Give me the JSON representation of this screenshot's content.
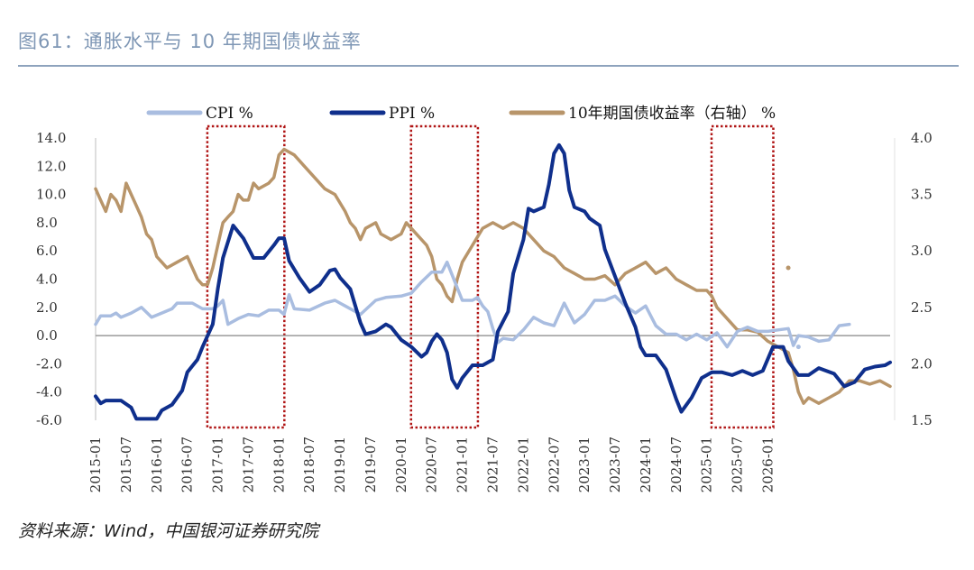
{
  "title": "图61：通胀水平与 10 年期国债收益率",
  "source": "资料来源：Wind，中国银河证券研究院",
  "colors": {
    "cpi": "#a9bde0",
    "ppi": "#0f2f8c",
    "bond": "#b8956a",
    "box": "#b01515",
    "title": "#7f97b5"
  },
  "chart_data": {
    "type": "line",
    "title": "图61：通胀水平与 10 年期国债收益率",
    "legend": [
      "CPI %",
      "PPI %",
      "10年期国债收益率（右轴） %"
    ],
    "legend_position": "top",
    "x_ticks": [
      "2015-01",
      "2015-07",
      "2016-01",
      "2016-07",
      "2017-01",
      "2017-07",
      "2018-01",
      "2018-07",
      "2019-01",
      "2019-07",
      "2020-01",
      "2020-07",
      "2021-01",
      "2021-07",
      "2022-01",
      "2022-07",
      "2023-01",
      "2023-07",
      "2024-01",
      "2024-07",
      "2025-01",
      "2025-07",
      "2026-01"
    ],
    "ylim_left": [
      -6,
      14
    ],
    "ylim_right": [
      1.5,
      4.0
    ],
    "y_ticks_left": [
      "-6.0",
      "-4.0",
      "-2.0",
      "0.0",
      "2.0",
      "4.0",
      "6.0",
      "8.0",
      "10.0",
      "12.0",
      "14.0"
    ],
    "y_ticks_right": [
      "1.5",
      "2.0",
      "2.5",
      "3.0",
      "3.5",
      "4.0"
    ],
    "highlight_ranges": [
      [
        "2016-12",
        "2018-01"
      ],
      [
        "2020-04",
        "2021-03"
      ],
      [
        "2025-03",
        "2026-01"
      ]
    ],
    "series": [
      {
        "name": "CPI %",
        "axis": "left",
        "points": [
          [
            0,
            0.8
          ],
          [
            1,
            1.4
          ],
          [
            3,
            1.4
          ],
          [
            4,
            1.6
          ],
          [
            5,
            1.3
          ],
          [
            7,
            1.6
          ],
          [
            9,
            2.0
          ],
          [
            11,
            1.3
          ],
          [
            13,
            1.6
          ],
          [
            15,
            1.9
          ],
          [
            16,
            2.3
          ],
          [
            19,
            2.3
          ],
          [
            21,
            1.9
          ],
          [
            23,
            1.9
          ],
          [
            24,
            2.1
          ],
          [
            25,
            2.5
          ],
          [
            26,
            0.8
          ],
          [
            28,
            1.2
          ],
          [
            30,
            1.5
          ],
          [
            32,
            1.4
          ],
          [
            34,
            1.8
          ],
          [
            36,
            1.8
          ],
          [
            37,
            1.5
          ],
          [
            38,
            2.9
          ],
          [
            39,
            1.9
          ],
          [
            42,
            1.8
          ],
          [
            45,
            2.3
          ],
          [
            47,
            2.5
          ],
          [
            49,
            2.1
          ],
          [
            52,
            1.5
          ],
          [
            55,
            2.5
          ],
          [
            57,
            2.7
          ],
          [
            60,
            2.8
          ],
          [
            62,
            3.0
          ],
          [
            64,
            3.8
          ],
          [
            66,
            4.5
          ],
          [
            68,
            4.5
          ],
          [
            69,
            5.2
          ],
          [
            70,
            4.3
          ],
          [
            72,
            2.5
          ],
          [
            74,
            2.5
          ],
          [
            75,
            2.7
          ],
          [
            76,
            2.1
          ],
          [
            77,
            1.7
          ],
          [
            78,
            0.5
          ],
          [
            79,
            -0.5
          ],
          [
            80,
            -0.2
          ],
          [
            82,
            -0.3
          ],
          [
            84,
            0.4
          ],
          [
            86,
            1.3
          ],
          [
            88,
            0.9
          ],
          [
            90,
            0.7
          ],
          [
            92,
            2.3
          ],
          [
            94,
            0.9
          ],
          [
            96,
            1.5
          ],
          [
            98,
            2.5
          ],
          [
            100,
            2.5
          ],
          [
            102,
            2.8
          ],
          [
            104,
            2.1
          ],
          [
            106,
            1.6
          ],
          [
            108,
            2.1
          ],
          [
            110,
            0.7
          ],
          [
            112,
            0.1
          ],
          [
            114,
            0.1
          ],
          [
            116,
            -0.3
          ],
          [
            118,
            0.1
          ],
          [
            120,
            -0.3
          ],
          [
            122,
            0.2
          ],
          [
            124,
            -0.8
          ],
          [
            126,
            0.3
          ],
          [
            128,
            0.6
          ],
          [
            130,
            0.3
          ],
          [
            132,
            0.3
          ],
          [
            134,
            0.4
          ],
          [
            136,
            0.5
          ],
          [
            137,
            -0.7
          ],
          [
            138,
            0.0
          ],
          [
            140,
            -0.1
          ],
          [
            142,
            -0.4
          ],
          [
            144,
            -0.3
          ],
          [
            146,
            0.7
          ],
          [
            148,
            0.8
          ]
        ]
      },
      {
        "name": "PPI %",
        "axis": "left",
        "points": [
          [
            0,
            -4.3
          ],
          [
            1,
            -4.8
          ],
          [
            2,
            -4.6
          ],
          [
            5,
            -4.6
          ],
          [
            7,
            -5.1
          ],
          [
            8,
            -5.9
          ],
          [
            10,
            -5.9
          ],
          [
            12,
            -5.9
          ],
          [
            13,
            -5.3
          ],
          [
            15,
            -4.9
          ],
          [
            17,
            -3.9
          ],
          [
            18,
            -2.6
          ],
          [
            20,
            -1.7
          ],
          [
            21,
            -0.8
          ],
          [
            23,
            0.8
          ],
          [
            24,
            3.3
          ],
          [
            25,
            5.5
          ],
          [
            27,
            7.8
          ],
          [
            29,
            6.9
          ],
          [
            31,
            5.5
          ],
          [
            33,
            5.5
          ],
          [
            35,
            6.4
          ],
          [
            36,
            6.9
          ],
          [
            37,
            6.9
          ],
          [
            38,
            5.3
          ],
          [
            40,
            4.1
          ],
          [
            42,
            3.1
          ],
          [
            44,
            3.6
          ],
          [
            46,
            4.6
          ],
          [
            47,
            4.7
          ],
          [
            48,
            4.1
          ],
          [
            50,
            3.3
          ],
          [
            52,
            0.9
          ],
          [
            53,
            0.1
          ],
          [
            55,
            0.3
          ],
          [
            57,
            0.8
          ],
          [
            58,
            0.6
          ],
          [
            60,
            -0.3
          ],
          [
            62,
            -0.8
          ],
          [
            64,
            -1.5
          ],
          [
            65,
            -1.2
          ],
          [
            66,
            -0.4
          ],
          [
            67,
            0.1
          ],
          [
            68,
            -0.3
          ],
          [
            69,
            -1.2
          ],
          [
            70,
            -3.1
          ],
          [
            71,
            -3.7
          ],
          [
            72,
            -3.0
          ],
          [
            74,
            -2.1
          ],
          [
            76,
            -2.1
          ],
          [
            78,
            -1.7
          ],
          [
            79,
            0.3
          ],
          [
            81,
            1.7
          ],
          [
            82,
            4.4
          ],
          [
            84,
            6.8
          ],
          [
            85,
            9.0
          ],
          [
            86,
            8.8
          ],
          [
            88,
            9.1
          ],
          [
            89,
            10.7
          ],
          [
            90,
            12.9
          ],
          [
            91,
            13.5
          ],
          [
            92,
            12.9
          ],
          [
            93,
            10.3
          ],
          [
            94,
            9.1
          ],
          [
            96,
            8.8
          ],
          [
            97,
            8.3
          ],
          [
            99,
            7.8
          ],
          [
            100,
            6.1
          ],
          [
            102,
            4.2
          ],
          [
            104,
            2.3
          ],
          [
            106,
            0.6
          ],
          [
            107,
            -0.8
          ],
          [
            108,
            -1.4
          ],
          [
            110,
            -1.4
          ],
          [
            112,
            -2.4
          ],
          [
            114,
            -4.5
          ],
          [
            115,
            -5.4
          ],
          [
            117,
            -4.4
          ],
          [
            119,
            -3.0
          ],
          [
            121,
            -2.6
          ],
          [
            123,
            -2.6
          ],
          [
            125,
            -2.8
          ],
          [
            127,
            -2.5
          ],
          [
            129,
            -2.8
          ],
          [
            131,
            -2.5
          ],
          [
            133,
            -0.8
          ],
          [
            135,
            -0.8
          ],
          [
            136,
            -1.8
          ],
          [
            137,
            -2.3
          ],
          [
            138,
            -2.8
          ],
          [
            140,
            -2.8
          ],
          [
            142,
            -2.3
          ],
          [
            145,
            -2.7
          ],
          [
            147,
            -3.6
          ],
          [
            149,
            -3.3
          ],
          [
            151,
            -2.4
          ],
          [
            153,
            -2.2
          ],
          [
            155,
            -2.1
          ],
          [
            156,
            -1.9
          ]
        ]
      },
      {
        "name": "10年期国债收益率（右轴） %",
        "axis": "right",
        "points": [
          [
            0,
            3.55
          ],
          [
            1,
            3.45
          ],
          [
            2,
            3.35
          ],
          [
            3,
            3.5
          ],
          [
            4,
            3.45
          ],
          [
            5,
            3.35
          ],
          [
            6,
            3.6
          ],
          [
            7,
            3.5
          ],
          [
            8,
            3.4
          ],
          [
            9,
            3.3
          ],
          [
            10,
            3.15
          ],
          [
            11,
            3.1
          ],
          [
            12,
            2.95
          ],
          [
            13,
            2.9
          ],
          [
            14,
            2.85
          ],
          [
            16,
            2.9
          ],
          [
            18,
            2.95
          ],
          [
            19,
            2.85
          ],
          [
            20,
            2.75
          ],
          [
            21,
            2.7
          ],
          [
            22,
            2.7
          ],
          [
            23,
            2.85
          ],
          [
            24,
            3.05
          ],
          [
            25,
            3.25
          ],
          [
            26,
            3.3
          ],
          [
            27,
            3.35
          ],
          [
            28,
            3.5
          ],
          [
            29,
            3.45
          ],
          [
            30,
            3.45
          ],
          [
            31,
            3.6
          ],
          [
            32,
            3.55
          ],
          [
            34,
            3.6
          ],
          [
            35,
            3.65
          ],
          [
            36,
            3.85
          ],
          [
            37,
            3.9
          ],
          [
            39,
            3.85
          ],
          [
            41,
            3.75
          ],
          [
            43,
            3.65
          ],
          [
            45,
            3.55
          ],
          [
            47,
            3.5
          ],
          [
            49,
            3.35
          ],
          [
            50,
            3.25
          ],
          [
            51,
            3.2
          ],
          [
            52,
            3.1
          ],
          [
            53,
            3.2
          ],
          [
            55,
            3.25
          ],
          [
            56,
            3.15
          ],
          [
            58,
            3.1
          ],
          [
            60,
            3.15
          ],
          [
            61,
            3.25
          ],
          [
            62,
            3.2
          ],
          [
            64,
            3.1
          ],
          [
            65,
            3.05
          ],
          [
            66,
            2.95
          ],
          [
            67,
            2.75
          ],
          [
            68,
            2.7
          ],
          [
            69,
            2.6
          ],
          [
            70,
            2.55
          ],
          [
            71,
            2.75
          ],
          [
            72,
            2.9
          ],
          [
            74,
            3.05
          ],
          [
            76,
            3.2
          ],
          [
            78,
            3.25
          ],
          [
            80,
            3.2
          ],
          [
            82,
            3.25
          ],
          [
            84,
            3.2
          ],
          [
            86,
            3.1
          ],
          [
            88,
            3.0
          ],
          [
            90,
            2.95
          ],
          [
            92,
            2.85
          ],
          [
            94,
            2.8
          ],
          [
            96,
            2.75
          ],
          [
            98,
            2.75
          ],
          [
            100,
            2.78
          ],
          [
            102,
            2.7
          ],
          [
            104,
            2.8
          ],
          [
            106,
            2.85
          ],
          [
            108,
            2.9
          ],
          [
            110,
            2.8
          ],
          [
            112,
            2.85
          ],
          [
            114,
            2.75
          ],
          [
            116,
            2.7
          ],
          [
            118,
            2.65
          ],
          [
            120,
            2.65
          ],
          [
            121,
            2.6
          ],
          [
            122,
            2.5
          ],
          [
            124,
            2.4
          ],
          [
            126,
            2.3
          ],
          [
            128,
            2.3
          ],
          [
            130,
            2.28
          ],
          [
            132,
            2.2
          ],
          [
            134,
            2.15
          ],
          [
            136,
            2.1
          ],
          [
            137,
            1.95
          ],
          [
            138,
            1.75
          ],
          [
            139,
            1.65
          ],
          [
            140,
            1.7
          ],
          [
            142,
            1.65
          ],
          [
            144,
            1.7
          ],
          [
            146,
            1.75
          ],
          [
            148,
            1.85
          ],
          [
            150,
            1.85
          ],
          [
            152,
            1.82
          ],
          [
            154,
            1.85
          ],
          [
            156,
            1.8
          ]
        ]
      }
    ],
    "outlier_points": [
      {
        "series": "10年期国债收益率（右轴） %",
        "x": 136,
        "value": 2.85
      },
      {
        "series": "CPI %",
        "x": 138,
        "value": -0.8
      }
    ]
  }
}
